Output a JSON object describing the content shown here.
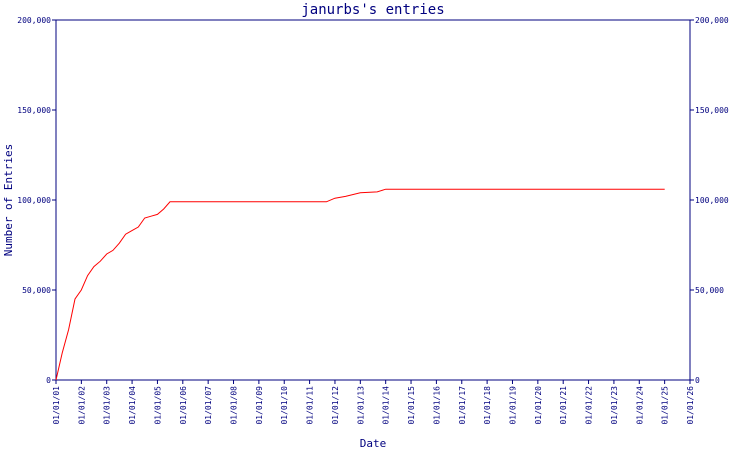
{
  "chart_data": {
    "type": "line",
    "title": "janurbs's entries",
    "xlabel": "Date",
    "ylabel": "Number of Entries",
    "x_tick_labels": [
      "01/01/01",
      "01/01/02",
      "01/01/03",
      "01/01/04",
      "01/01/05",
      "01/01/06",
      "01/01/07",
      "01/01/08",
      "01/01/09",
      "01/01/10",
      "01/01/11",
      "01/01/12",
      "01/01/13",
      "01/01/14",
      "01/01/15",
      "01/01/16",
      "01/01/17",
      "01/01/18",
      "01/01/19",
      "01/01/20",
      "01/01/21",
      "01/01/22",
      "01/01/23",
      "01/01/24",
      "01/01/25",
      "01/01/26"
    ],
    "y_tick_labels": [
      "0",
      "50,000",
      "100,000",
      "150,000",
      "200,000"
    ],
    "y_ticks": [
      0,
      50000,
      100000,
      150000,
      200000
    ],
    "xlim": [
      "2001-01-01",
      "2026-01-01"
    ],
    "ylim": [
      0,
      200000
    ],
    "grid": false,
    "legend": "none",
    "line_color": "#ff0000",
    "axis_color": "#00007f",
    "series": [
      {
        "x": [
          "2001-01-01",
          "2001-04-01",
          "2001-07-01",
          "2001-10-01",
          "2002-01-01",
          "2002-04-01",
          "2002-07-01",
          "2002-10-01",
          "2003-01-01",
          "2003-04-01",
          "2003-07-01",
          "2003-10-01",
          "2004-01-01",
          "2004-04-01",
          "2004-07-01",
          "2004-10-01",
          "2005-01-01",
          "2005-04-01",
          "2005-07-01",
          "2007-01-01",
          "2009-01-01",
          "2011-01-01",
          "2011-09-01",
          "2012-01-01",
          "2012-06-01",
          "2013-01-01",
          "2013-09-01",
          "2014-01-01",
          "2016-01-01",
          "2020-01-01",
          "2025-01-01"
        ],
        "y": [
          0,
          15000,
          28000,
          45000,
          50000,
          58000,
          63000,
          66000,
          70000,
          72000,
          76000,
          81000,
          83000,
          85000,
          90000,
          91000,
          92000,
          95000,
          99000,
          99000,
          99000,
          99000,
          99000,
          101000,
          102000,
          104000,
          104500,
          106000,
          106000,
          106000,
          106000
        ]
      }
    ]
  }
}
